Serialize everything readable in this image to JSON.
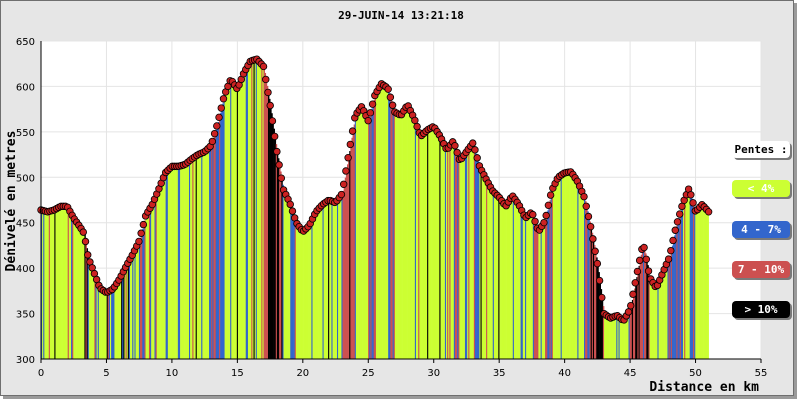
{
  "title": "29-JUIN-14 13:21:18",
  "legend": {
    "title": "Pentes :",
    "items": [
      {
        "label": "< 4%",
        "color": "#ccff33",
        "text_color": "#ffffff"
      },
      {
        "label": "4 - 7%",
        "color": "#3366cc",
        "text_color": "#ffffff"
      },
      {
        "label": "7 - 10%",
        "color": "#cc5050",
        "text_color": "#ffffff"
      },
      {
        "label": "> 10%",
        "color": "#000000",
        "text_color": "#ffffff"
      }
    ]
  },
  "chart_data": {
    "type": "area",
    "title": "29-JUIN-14 13:21:18",
    "xlabel": "Distance en km",
    "ylabel": "Dénivelé en metres",
    "xlim": [
      0,
      55
    ],
    "ylim": [
      300,
      650
    ],
    "xticks": [
      0,
      5,
      10,
      15,
      20,
      25,
      30,
      35,
      40,
      45,
      50,
      55
    ],
    "yticks": [
      300,
      350,
      400,
      450,
      500,
      550,
      600,
      650
    ],
    "grid": true,
    "legend_position": "right",
    "slope_colors": {
      "lt4": "#ccff33",
      "4to7": "#3366cc",
      "7to10": "#cc5050",
      "gt10": "#000000"
    },
    "marker_color": "#cc2222",
    "profile": [
      [
        0,
        464
      ],
      [
        0.5,
        462
      ],
      [
        1,
        464
      ],
      [
        1.5,
        468
      ],
      [
        2,
        468
      ],
      [
        2.5,
        455
      ],
      [
        3,
        445
      ],
      [
        3.3,
        438
      ],
      [
        3.6,
        412
      ],
      [
        4,
        397
      ],
      [
        4.5,
        378
      ],
      [
        5,
        373
      ],
      [
        5.5,
        377
      ],
      [
        6,
        388
      ],
      [
        6.5,
        402
      ],
      [
        7,
        415
      ],
      [
        7.5,
        430
      ],
      [
        8,
        458
      ],
      [
        8.5,
        470
      ],
      [
        9,
        487
      ],
      [
        9.5,
        505
      ],
      [
        10,
        512
      ],
      [
        10.5,
        512
      ],
      [
        11,
        514
      ],
      [
        11.5,
        520
      ],
      [
        12,
        525
      ],
      [
        12.5,
        528
      ],
      [
        13,
        535
      ],
      [
        13.5,
        560
      ],
      [
        14,
        590
      ],
      [
        14.5,
        608
      ],
      [
        15,
        597
      ],
      [
        15.5,
        615
      ],
      [
        16,
        628
      ],
      [
        16.5,
        630
      ],
      [
        17,
        622
      ],
      [
        17.5,
        580
      ],
      [
        18,
        530
      ],
      [
        18.5,
        487
      ],
      [
        19,
        472
      ],
      [
        19.5,
        450
      ],
      [
        20,
        440
      ],
      [
        20.5,
        447
      ],
      [
        21,
        462
      ],
      [
        21.5,
        470
      ],
      [
        22,
        475
      ],
      [
        22.5,
        472
      ],
      [
        23,
        482
      ],
      [
        23.5,
        525
      ],
      [
        24,
        568
      ],
      [
        24.5,
        578
      ],
      [
        25,
        562
      ],
      [
        25.5,
        590
      ],
      [
        26,
        603
      ],
      [
        26.5,
        598
      ],
      [
        27,
        572
      ],
      [
        27.5,
        568
      ],
      [
        28,
        580
      ],
      [
        28.5,
        565
      ],
      [
        29,
        545
      ],
      [
        29.5,
        552
      ],
      [
        30,
        556
      ],
      [
        30.5,
        545
      ],
      [
        31,
        530
      ],
      [
        31.5,
        540
      ],
      [
        32,
        518
      ],
      [
        32.5,
        528
      ],
      [
        33,
        538
      ],
      [
        33.5,
        512
      ],
      [
        34,
        498
      ],
      [
        34.5,
        485
      ],
      [
        35,
        478
      ],
      [
        35.5,
        468
      ],
      [
        36,
        480
      ],
      [
        36.5,
        470
      ],
      [
        37,
        455
      ],
      [
        37.5,
        462
      ],
      [
        38,
        440
      ],
      [
        38.5,
        452
      ],
      [
        39,
        485
      ],
      [
        39.5,
        500
      ],
      [
        40,
        505
      ],
      [
        40.5,
        506
      ],
      [
        41,
        495
      ],
      [
        41.5,
        478
      ],
      [
        42,
        445
      ],
      [
        42.5,
        405
      ],
      [
        43,
        350
      ],
      [
        43.5,
        345
      ],
      [
        44,
        348
      ],
      [
        44.5,
        342
      ],
      [
        45,
        355
      ],
      [
        45.5,
        392
      ],
      [
        46,
        428
      ],
      [
        46.5,
        390
      ],
      [
        47,
        378
      ],
      [
        47.5,
        395
      ],
      [
        48,
        412
      ],
      [
        48.5,
        445
      ],
      [
        49,
        470
      ],
      [
        49.5,
        488
      ],
      [
        50,
        462
      ],
      [
        50.5,
        470
      ],
      [
        51,
        462
      ]
    ]
  }
}
